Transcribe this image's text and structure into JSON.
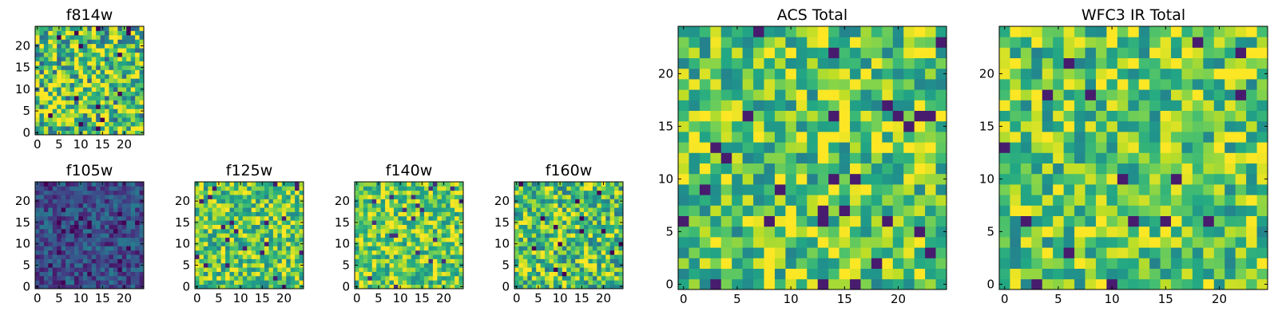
{
  "chart_data": [
    {
      "type": "heatmap",
      "title": "f814w",
      "xticks": [
        0,
        5,
        10,
        15,
        20
      ],
      "yticks": [
        0,
        5,
        10,
        15,
        20
      ],
      "xlim": [
        -0.5,
        24.5
      ],
      "ylim": [
        -0.5,
        24.5
      ],
      "grid_size": 25,
      "colormap": "viridis",
      "base_value": 0.72,
      "spread": 0.42,
      "seed": 11
    },
    {
      "type": "heatmap",
      "title": "f105w",
      "xticks": [
        0,
        5,
        10,
        15,
        20
      ],
      "yticks": [
        0,
        5,
        10,
        15,
        20
      ],
      "xlim": [
        -0.5,
        24.5
      ],
      "ylim": [
        -0.5,
        24.5
      ],
      "grid_size": 25,
      "colormap": "viridis",
      "base_value": 0.24,
      "spread": 0.18,
      "seed": 23
    },
    {
      "type": "heatmap",
      "title": "f125w",
      "xticks": [
        0,
        5,
        10,
        15,
        20
      ],
      "yticks": [
        0,
        5,
        10,
        15,
        20
      ],
      "xlim": [
        -0.5,
        24.5
      ],
      "ylim": [
        -0.5,
        24.5
      ],
      "grid_size": 25,
      "colormap": "viridis",
      "base_value": 0.74,
      "spread": 0.3,
      "seed": 37
    },
    {
      "type": "heatmap",
      "title": "f140w",
      "xticks": [
        0,
        5,
        10,
        15,
        20
      ],
      "yticks": [
        0,
        5,
        10,
        15,
        20
      ],
      "xlim": [
        -0.5,
        24.5
      ],
      "ylim": [
        -0.5,
        24.5
      ],
      "grid_size": 25,
      "colormap": "viridis",
      "base_value": 0.76,
      "spread": 0.28,
      "seed": 41
    },
    {
      "type": "heatmap",
      "title": "f160w",
      "xticks": [
        0,
        5,
        10,
        15,
        20
      ],
      "yticks": [
        0,
        5,
        10,
        15,
        20
      ],
      "xlim": [
        -0.5,
        24.5
      ],
      "ylim": [
        -0.5,
        24.5
      ],
      "grid_size": 25,
      "colormap": "viridis",
      "base_value": 0.72,
      "spread": 0.34,
      "seed": 53
    },
    {
      "type": "heatmap",
      "title": "ACS Total",
      "xticks": [
        0,
        5,
        10,
        15,
        20
      ],
      "yticks": [
        0,
        5,
        10,
        15,
        20
      ],
      "xlim": [
        -0.5,
        24.5
      ],
      "ylim": [
        -0.5,
        24.5
      ],
      "grid_size": 25,
      "colormap": "viridis",
      "base_value": 0.74,
      "spread": 0.3,
      "seed": 67
    },
    {
      "type": "heatmap",
      "title": "WFC3 IR Total",
      "xticks": [
        0,
        5,
        10,
        15,
        20
      ],
      "yticks": [
        0,
        5,
        10,
        15,
        20
      ],
      "xlim": [
        -0.5,
        24.5
      ],
      "ylim": [
        -0.5,
        24.5
      ],
      "grid_size": 25,
      "colormap": "viridis",
      "base_value": 0.74,
      "spread": 0.3,
      "seed": 79
    }
  ]
}
